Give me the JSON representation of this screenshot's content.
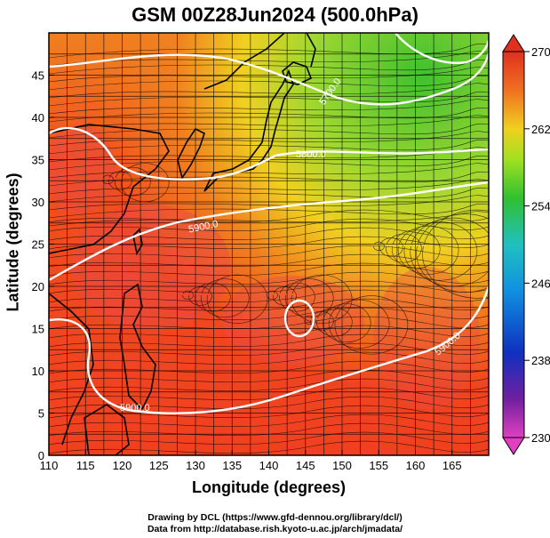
{
  "title": "GSM 00Z28Jun2024 (500.0hPa)",
  "xlabel": "Longitude (degrees)",
  "ylabel": "Latitude  (degrees)",
  "credit_line1": "Drawing by DCL (https://www.gfd-dennou.org/library/dcl/)",
  "credit_line2": "Data from http://database.rish.kyoto-u.ac.jp/arch/jmadata/",
  "x_ticks": [
    "110",
    "115",
    "120",
    "125",
    "130",
    "135",
    "140",
    "145",
    "150",
    "155",
    "160",
    "165"
  ],
  "y_ticks": [
    "0",
    "5",
    "10",
    "15",
    "20",
    "25",
    "30",
    "35",
    "40",
    "45"
  ],
  "colorbar_ticks": [
    "270",
    "262",
    "254",
    "246",
    "238",
    "230"
  ],
  "contour_labels": [
    "5700.0",
    "5800.0",
    "5900.0",
    "5900.0",
    "5900.0",
    "5900.0"
  ],
  "extent": {
    "lon": [
      110,
      170
    ],
    "lat": [
      0,
      50
    ]
  },
  "colorbar_range": [
    230,
    270
  ],
  "colorbar_colors": [
    "#e040c0",
    "#7020a0",
    "#1030c0",
    "#1090e0",
    "#20c0c0",
    "#30c030",
    "#a0e020",
    "#f0d020",
    "#f07020",
    "#e03020"
  ]
}
